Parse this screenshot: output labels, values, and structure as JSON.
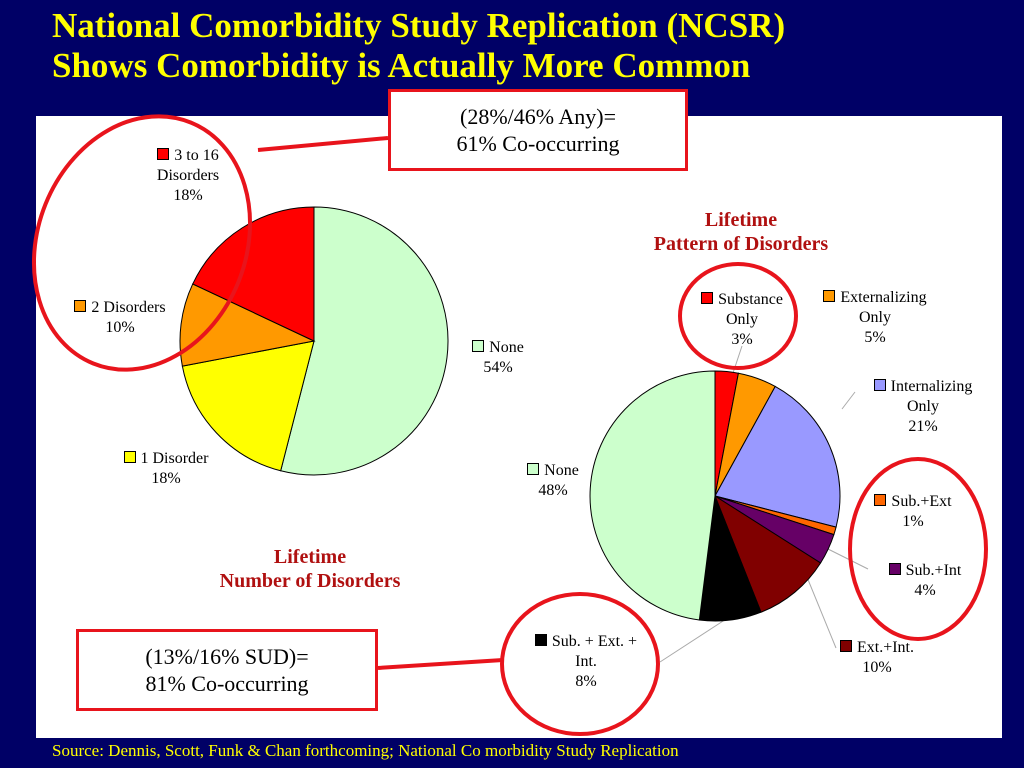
{
  "slide": {
    "title_line1": "National Comorbidity Study Replication (NCSR)",
    "title_line2": "Shows Comorbidity is Actually More Common",
    "source": "Source: Dennis, Scott, Funk & Chan forthcoming;  National Co morbidity Study Replication"
  },
  "callouts": [
    {
      "line1": "(28%/46% Any)=",
      "line2": "61% Co-occurring"
    },
    {
      "line1": "(13%/16% SUD)=",
      "line2": "81% Co-occurring"
    }
  ],
  "chart_data": [
    {
      "type": "pie",
      "title_line1": "Lifetime",
      "title_line2": "Number of Disorders",
      "slices": [
        {
          "label_lines": [
            "None"
          ],
          "value": 54,
          "value_label": "54%",
          "color": "#ccffcc"
        },
        {
          "label_lines": [
            "1 Disorder"
          ],
          "value": 18,
          "value_label": "18%",
          "color": "#ffff00"
        },
        {
          "label_lines": [
            "2 Disorders"
          ],
          "value": 10,
          "value_label": "10%",
          "color": "#ff9900"
        },
        {
          "label_lines": [
            "3 to 16",
            "Disorders"
          ],
          "value": 18,
          "value_label": "18%",
          "color": "#ff0000"
        }
      ]
    },
    {
      "type": "pie",
      "title_line1": "Lifetime",
      "title_line2": "Pattern of Disorders",
      "slices": [
        {
          "label_lines": [
            "Substance",
            "Only"
          ],
          "value": 3,
          "value_label": "3%",
          "color": "#ff0000"
        },
        {
          "label_lines": [
            "Externalizing",
            "Only"
          ],
          "value": 5,
          "value_label": "5%",
          "color": "#ff9900"
        },
        {
          "label_lines": [
            "Internalizing",
            "Only"
          ],
          "value": 21,
          "value_label": "21%",
          "color": "#9999ff"
        },
        {
          "label_lines": [
            "Sub.+Ext"
          ],
          "value": 1,
          "value_label": "1%",
          "color": "#ff6600"
        },
        {
          "label_lines": [
            "Sub.+Int"
          ],
          "value": 4,
          "value_label": "4%",
          "color": "#660066"
        },
        {
          "label_lines": [
            "Ext.+Int."
          ],
          "value": 10,
          "value_label": "10%",
          "color": "#800000"
        },
        {
          "label_lines": [
            "Sub. + Ext.  +",
            "Int."
          ],
          "value": 8,
          "value_label": "8%",
          "color": "#000000"
        },
        {
          "label_lines": [
            "None"
          ],
          "value": 48,
          "value_label": "48%",
          "color": "#ccffcc"
        }
      ]
    }
  ]
}
